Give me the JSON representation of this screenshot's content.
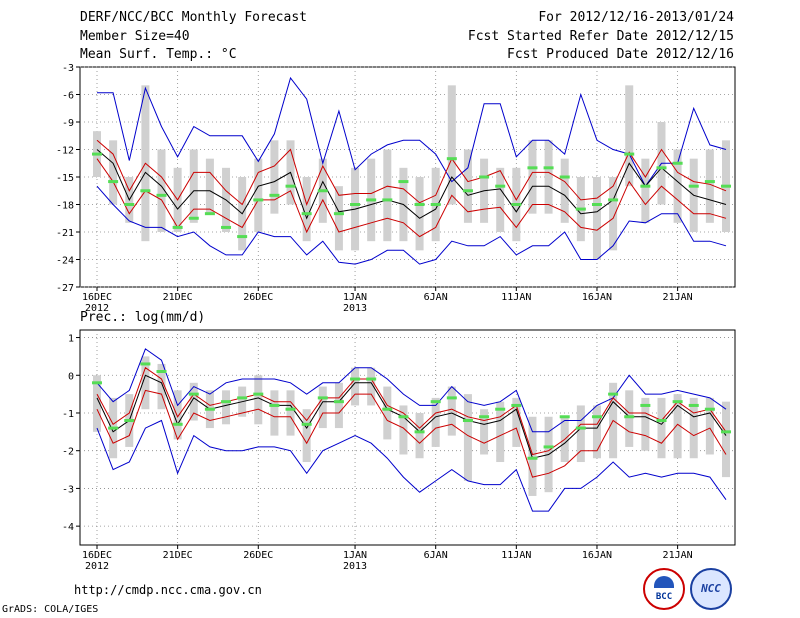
{
  "header": {
    "left": [
      "DERF/NCC/BCC Monthly Forecast",
      "Member Size=40",
      "Mean Surf. Temp.: °C"
    ],
    "right": [
      "For 2012/12/16-2013/01/24",
      "Fcst Started Refer Date 2012/12/15",
      "Fcst Produced Date 2012/12/16"
    ]
  },
  "footer": {
    "url": "http://cmdp.ncc.cma.gov.cn",
    "credit": "GrADS: COLA/IGES",
    "logo_bcc_label": "BCC",
    "logo_ncc_label": "NCC"
  },
  "colors": {
    "max_min": "#0000cc",
    "sd": "#cc0000",
    "mean": "#000000",
    "box": "#d0d0d0",
    "member": "#55dd55",
    "grid": "#888888"
  },
  "chart_data": [
    {
      "type": "line",
      "title": "Mean Surf. Temp.: °C",
      "ylim": [
        -27,
        -3
      ],
      "yticks": [
        -3,
        -6,
        -9,
        -12,
        -15,
        -18,
        -21,
        -24,
        -27
      ],
      "x_day_index_ticks": [
        0,
        5,
        10,
        16,
        21,
        26,
        31,
        36
      ],
      "xtick_labels": [
        "16DEC",
        "21DEC",
        "26DEC",
        "1JAN",
        "6JAN",
        "11JAN",
        "16JAN",
        "21JAN"
      ],
      "xtick_years": [
        "2012",
        "",
        "",
        "2013",
        "",
        "",
        "",
        ""
      ],
      "days": 40,
      "series": [
        {
          "name": "max",
          "values": [
            -5.8,
            -5.8,
            -13.2,
            -5.3,
            -9.5,
            -12.8,
            -9.5,
            -10.5,
            -10.5,
            -10.5,
            -13.3,
            -10.3,
            -4.2,
            -6.5,
            -13.5,
            -7.8,
            -14.2,
            -12.5,
            -11.5,
            -11.0,
            -11.0,
            -12.5,
            -15.5,
            -14.0,
            -7.0,
            -7.0,
            -12.8,
            -11.0,
            -11.0,
            -12.5,
            -6.0,
            -11.0,
            -12.0,
            -12.5,
            -16.0,
            -13.5,
            -13.5,
            -7.5,
            -11.5,
            -12.0
          ]
        },
        {
          "name": "sd_upper",
          "values": [
            -11.0,
            -12.5,
            -16.5,
            -13.5,
            -15.0,
            -17.5,
            -14.5,
            -14.5,
            -16.5,
            -18.0,
            -14.5,
            -13.8,
            -12.0,
            -18.0,
            -13.8,
            -17.0,
            -16.8,
            -16.8,
            -16.0,
            -16.3,
            -17.8,
            -17.0,
            -13.0,
            -15.5,
            -15.0,
            -14.3,
            -17.5,
            -14.5,
            -14.5,
            -15.5,
            -17.5,
            -17.3,
            -16.0,
            -12.3,
            -15.0,
            -12.0,
            -14.5,
            -15.5,
            -15.8,
            -16.5
          ]
        },
        {
          "name": "mean",
          "values": [
            -12.0,
            -13.5,
            -17.5,
            -14.5,
            -16.0,
            -18.5,
            -16.5,
            -16.5,
            -17.5,
            -19.0,
            -16.0,
            -15.5,
            -14.5,
            -19.5,
            -15.5,
            -18.8,
            -18.5,
            -18.0,
            -17.5,
            -18.0,
            -19.5,
            -18.5,
            -15.0,
            -17.0,
            -16.5,
            -16.3,
            -18.8,
            -16.0,
            -16.0,
            -17.0,
            -19.0,
            -18.8,
            -17.5,
            -13.5,
            -16.0,
            -14.0,
            -15.5,
            -17.0,
            -17.5,
            -18.0
          ]
        },
        {
          "name": "sd_lower",
          "values": [
            -13.0,
            -15.5,
            -19.0,
            -16.5,
            -17.5,
            -20.5,
            -18.5,
            -18.5,
            -19.5,
            -20.5,
            -17.5,
            -17.5,
            -16.5,
            -21.0,
            -17.5,
            -21.0,
            -20.5,
            -20.0,
            -19.5,
            -20.0,
            -21.5,
            -20.5,
            -17.0,
            -18.8,
            -18.5,
            -18.3,
            -20.5,
            -18.0,
            -18.0,
            -18.8,
            -20.5,
            -20.8,
            -19.5,
            -15.5,
            -18.0,
            -16.0,
            -17.5,
            -19.0,
            -19.0,
            -19.5
          ]
        },
        {
          "name": "min",
          "values": [
            -16.0,
            -18.0,
            -19.8,
            -20.5,
            -20.5,
            -21.5,
            -21.0,
            -22.5,
            -23.5,
            -23.5,
            -21.0,
            -21.5,
            -21.5,
            -23.5,
            -22.0,
            -24.3,
            -24.5,
            -24.0,
            -23.0,
            -23.0,
            -24.5,
            -24.0,
            -22.0,
            -22.5,
            -22.5,
            -21.5,
            -23.5,
            -22.5,
            -22.5,
            -21.0,
            -24.0,
            -24.0,
            -22.5,
            -19.8,
            -20.0,
            -19.0,
            -19.0,
            -22.0,
            -22.0,
            -22.5
          ]
        },
        {
          "name": "member_1",
          "values": [
            -12.5,
            -15.5,
            -18.0,
            -16.5,
            -17.0,
            -20.5,
            -19.5,
            -19.0,
            -20.5,
            -21.5,
            -17.5,
            -17.0,
            -16.0,
            -19.0,
            -16.5,
            -19.0,
            -18.0,
            -17.5,
            -17.5,
            -15.5,
            -18.0,
            -18.0,
            -13.0,
            -16.5,
            -15.0,
            -16.0,
            -18.0,
            -14.0,
            -14.0,
            -15.0,
            -18.5,
            -18.0,
            -17.5,
            -12.5,
            -16.0,
            -14.0,
            -13.5,
            -16.0,
            -15.5,
            -16.0
          ]
        },
        {
          "name": "boxes",
          "values": [
            [
              -10,
              -15
            ],
            [
              -11,
              -18
            ],
            [
              -15,
              -20
            ],
            [
              -5,
              -22
            ],
            [
              -12,
              -21
            ],
            [
              -14,
              -21
            ],
            [
              -12,
              -20
            ],
            [
              -13,
              -19
            ],
            [
              -14,
              -21
            ],
            [
              -15,
              -23
            ],
            [
              -13,
              -21
            ],
            [
              -11,
              -19
            ],
            [
              -11,
              -18
            ],
            [
              -15,
              -22
            ],
            [
              -13,
              -20
            ],
            [
              -16,
              -23
            ],
            [
              -14,
              -23
            ],
            [
              -13,
              -22
            ],
            [
              -12,
              -22
            ],
            [
              -14,
              -22
            ],
            [
              -15,
              -23
            ],
            [
              -14,
              -22
            ],
            [
              -5,
              -18
            ],
            [
              -12,
              -20
            ],
            [
              -13,
              -20
            ],
            [
              -14,
              -21
            ],
            [
              -14,
              -22
            ],
            [
              -11,
              -19
            ],
            [
              -11,
              -19
            ],
            [
              -13,
              -20
            ],
            [
              -15,
              -22
            ],
            [
              -15,
              -24
            ],
            [
              -15,
              -23
            ],
            [
              -5,
              -16
            ],
            [
              -13,
              -20
            ],
            [
              -9,
              -18
            ],
            [
              -12,
              -20
            ],
            [
              -13,
              -21
            ],
            [
              -12,
              -20
            ],
            [
              -11,
              -21
            ]
          ]
        }
      ]
    },
    {
      "type": "line",
      "title": "Prec.: log(mm/d)",
      "ylim": [
        -4.5,
        1.2
      ],
      "yticks": [
        1,
        0,
        -1,
        -2,
        -3,
        -4
      ],
      "x_day_index_ticks": [
        0,
        5,
        10,
        16,
        21,
        26,
        31,
        36
      ],
      "xtick_labels": [
        "16DEC",
        "21DEC",
        "26DEC",
        "1JAN",
        "6JAN",
        "11JAN",
        "16JAN",
        "21JAN"
      ],
      "xtick_years": [
        "2012",
        "",
        "",
        "2013",
        "",
        "",
        "",
        ""
      ],
      "days": 40,
      "series": [
        {
          "name": "max",
          "values": [
            -0.2,
            -0.7,
            -0.4,
            0.7,
            0.4,
            -0.8,
            -0.3,
            -0.5,
            -0.2,
            -0.1,
            -0.1,
            -0.1,
            -0.2,
            -0.5,
            -0.2,
            -0.2,
            0.2,
            0.2,
            -0.1,
            -0.5,
            -0.8,
            -0.8,
            -0.3,
            -0.7,
            -0.8,
            -0.7,
            -0.4,
            -1.5,
            -1.5,
            -1.2,
            -1.2,
            -0.8,
            -0.6,
            0.0,
            -0.5,
            -0.5,
            -0.4,
            -0.5,
            -0.6,
            -0.9
          ]
        },
        {
          "name": "sd_upper",
          "values": [
            -0.5,
            -1.3,
            -1.0,
            0.2,
            -0.1,
            -1.1,
            -0.5,
            -0.8,
            -0.7,
            -0.6,
            -0.5,
            -0.7,
            -0.7,
            -1.2,
            -0.6,
            -0.6,
            -0.1,
            -0.1,
            -0.8,
            -1.0,
            -1.4,
            -1.0,
            -0.9,
            -1.1,
            -1.2,
            -1.1,
            -0.8,
            -2.1,
            -2.0,
            -1.7,
            -1.3,
            -1.3,
            -0.6,
            -1.0,
            -1.0,
            -1.2,
            -0.7,
            -1.0,
            -0.9,
            -1.5
          ]
        },
        {
          "name": "mean",
          "values": [
            -0.6,
            -1.5,
            -1.2,
            0.0,
            -0.2,
            -1.3,
            -0.6,
            -0.9,
            -0.8,
            -0.7,
            -0.6,
            -0.8,
            -0.8,
            -1.4,
            -0.7,
            -0.7,
            -0.2,
            -0.2,
            -0.9,
            -1.1,
            -1.5,
            -1.1,
            -1.0,
            -1.2,
            -1.3,
            -1.2,
            -0.9,
            -2.2,
            -2.1,
            -1.8,
            -1.4,
            -1.4,
            -0.7,
            -1.1,
            -1.1,
            -1.3,
            -0.8,
            -1.1,
            -1.0,
            -1.6
          ]
        },
        {
          "name": "sd_lower",
          "values": [
            -0.9,
            -1.8,
            -1.6,
            -0.4,
            -0.5,
            -1.7,
            -1.0,
            -1.2,
            -1.1,
            -1.0,
            -0.9,
            -1.1,
            -1.1,
            -1.8,
            -1.0,
            -1.0,
            -0.5,
            -0.5,
            -1.2,
            -1.4,
            -1.8,
            -1.4,
            -1.3,
            -1.6,
            -1.8,
            -1.6,
            -1.4,
            -2.7,
            -2.6,
            -2.4,
            -2.0,
            -2.0,
            -1.2,
            -1.5,
            -1.6,
            -1.8,
            -1.3,
            -1.6,
            -1.4,
            -2.1
          ]
        },
        {
          "name": "min",
          "values": [
            -1.4,
            -2.5,
            -2.3,
            -1.4,
            -1.2,
            -2.6,
            -1.6,
            -1.9,
            -2.0,
            -2.0,
            -1.9,
            -1.9,
            -2.0,
            -2.6,
            -2.0,
            -1.8,
            -1.6,
            -1.8,
            -2.2,
            -2.7,
            -3.1,
            -2.8,
            -2.5,
            -2.8,
            -2.9,
            -2.9,
            -2.5,
            -3.6,
            -3.6,
            -3.0,
            -3.0,
            -2.7,
            -2.3,
            -2.7,
            -2.6,
            -2.7,
            -2.6,
            -2.6,
            -2.7,
            -3.3
          ]
        },
        {
          "name": "member_1",
          "values": [
            -0.2,
            -1.4,
            -1.2,
            0.3,
            0.1,
            -1.3,
            -0.5,
            -0.9,
            -0.7,
            -0.6,
            -0.5,
            -0.8,
            -0.9,
            -1.3,
            -0.6,
            -0.7,
            -0.1,
            -0.1,
            -0.9,
            -1.1,
            -1.5,
            -0.7,
            -0.6,
            -1.2,
            -1.1,
            -0.9,
            -0.8,
            -2.2,
            -1.9,
            -1.1,
            -1.4,
            -1.1,
            -0.5,
            -1.1,
            -0.8,
            -1.2,
            -0.7,
            -0.8,
            -0.9,
            -1.5
          ]
        },
        {
          "name": "boxes",
          "values": [
            [
              0.0,
              -1.5
            ],
            [
              -0.6,
              -2.2
            ],
            [
              -0.5,
              -1.9
            ],
            [
              0.5,
              -0.9
            ],
            [
              0.3,
              -0.9
            ],
            [
              -0.4,
              -1.7
            ],
            [
              -0.2,
              -1.2
            ],
            [
              -0.4,
              -1.4
            ],
            [
              -0.4,
              -1.3
            ],
            [
              -0.3,
              -1.1
            ],
            [
              0.0,
              -1.3
            ],
            [
              -0.4,
              -1.6
            ],
            [
              -0.4,
              -1.6
            ],
            [
              -0.9,
              -2.3
            ],
            [
              -0.3,
              -1.4
            ],
            [
              -0.2,
              -1.4
            ],
            [
              0.2,
              -0.8
            ],
            [
              0.2,
              -0.8
            ],
            [
              -0.3,
              -1.7
            ],
            [
              -0.8,
              -2.1
            ],
            [
              -1.0,
              -2.2
            ],
            [
              -0.6,
              -1.9
            ],
            [
              -0.3,
              -1.6
            ],
            [
              -0.5,
              -2.8
            ],
            [
              -0.9,
              -2.1
            ],
            [
              -0.7,
              -2.3
            ],
            [
              -0.6,
              -1.9
            ],
            [
              -1.1,
              -3.2
            ],
            [
              -1.1,
              -3.1
            ],
            [
              -1.1,
              -2.3
            ],
            [
              -0.8,
              -2.3
            ],
            [
              -0.8,
              -2.2
            ],
            [
              -0.2,
              -2.2
            ],
            [
              -0.4,
              -1.9
            ],
            [
              -0.6,
              -2.0
            ],
            [
              -0.6,
              -2.2
            ],
            [
              -0.5,
              -2.2
            ],
            [
              -0.6,
              -2.2
            ],
            [
              -0.6,
              -2.1
            ],
            [
              -0.7,
              -2.7
            ]
          ]
        }
      ]
    }
  ]
}
